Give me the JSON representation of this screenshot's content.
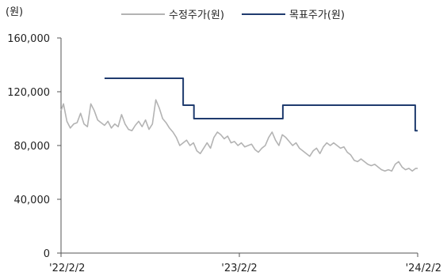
{
  "chart_data": {
    "type": "line",
    "unit_label": "(원)",
    "title": "",
    "xlabel": "",
    "ylabel": "",
    "ylim": [
      0,
      160000
    ],
    "xlim": [
      "2022-02-02",
      "2024-02-02"
    ],
    "y_ticks": [
      {
        "value": 0,
        "label": "0"
      },
      {
        "value": 40000,
        "label": "40,000"
      },
      {
        "value": 80000,
        "label": "80,000"
      },
      {
        "value": 120000,
        "label": "120,000"
      },
      {
        "value": 160000,
        "label": "160,000"
      }
    ],
    "x_ticks": [
      {
        "date": "2022-02-02",
        "label": "'22/2/2"
      },
      {
        "date": "2023-02-02",
        "label": "'23/2/2"
      },
      {
        "date": "2024-02-02",
        "label": "'24/2/2"
      }
    ],
    "grid": false,
    "legend_position": "top",
    "series": [
      {
        "name": "수정주가(원)",
        "color": "#b3b3b3",
        "style": "line",
        "points": [
          [
            "2022-02-02",
            106000
          ],
          [
            "2022-02-07",
            111000
          ],
          [
            "2022-02-14",
            98000
          ],
          [
            "2022-02-21",
            93000
          ],
          [
            "2022-02-28",
            96000
          ],
          [
            "2022-03-07",
            97000
          ],
          [
            "2022-03-14",
            104000
          ],
          [
            "2022-03-21",
            96000
          ],
          [
            "2022-03-28",
            94000
          ],
          [
            "2022-04-04",
            111000
          ],
          [
            "2022-04-11",
            106000
          ],
          [
            "2022-04-18",
            99000
          ],
          [
            "2022-04-25",
            97000
          ],
          [
            "2022-05-02",
            95000
          ],
          [
            "2022-05-09",
            98000
          ],
          [
            "2022-05-16",
            93000
          ],
          [
            "2022-05-23",
            96000
          ],
          [
            "2022-05-30",
            94000
          ],
          [
            "2022-06-06",
            103000
          ],
          [
            "2022-06-13",
            96000
          ],
          [
            "2022-06-20",
            92000
          ],
          [
            "2022-06-27",
            91000
          ],
          [
            "2022-07-04",
            95000
          ],
          [
            "2022-07-11",
            98000
          ],
          [
            "2022-07-18",
            94000
          ],
          [
            "2022-07-25",
            99000
          ],
          [
            "2022-08-01",
            92000
          ],
          [
            "2022-08-08",
            96000
          ],
          [
            "2022-08-15",
            114000
          ],
          [
            "2022-08-22",
            108000
          ],
          [
            "2022-08-29",
            100000
          ],
          [
            "2022-09-05",
            97000
          ],
          [
            "2022-09-12",
            93000
          ],
          [
            "2022-09-19",
            90000
          ],
          [
            "2022-09-26",
            86000
          ],
          [
            "2022-10-03",
            80000
          ],
          [
            "2022-10-10",
            82000
          ],
          [
            "2022-10-17",
            84000
          ],
          [
            "2022-10-24",
            80000
          ],
          [
            "2022-10-31",
            82000
          ],
          [
            "2022-11-07",
            76000
          ],
          [
            "2022-11-14",
            74000
          ],
          [
            "2022-11-21",
            78000
          ],
          [
            "2022-11-28",
            82000
          ],
          [
            "2022-12-05",
            78000
          ],
          [
            "2022-12-12",
            86000
          ],
          [
            "2022-12-19",
            90000
          ],
          [
            "2022-12-26",
            88000
          ],
          [
            "2023-01-02",
            85000
          ],
          [
            "2023-01-09",
            87000
          ],
          [
            "2023-01-16",
            82000
          ],
          [
            "2023-01-23",
            83000
          ],
          [
            "2023-01-30",
            80000
          ],
          [
            "2023-02-06",
            82000
          ],
          [
            "2023-02-13",
            79000
          ],
          [
            "2023-02-20",
            80000
          ],
          [
            "2023-02-27",
            81000
          ],
          [
            "2023-03-06",
            77000
          ],
          [
            "2023-03-13",
            75000
          ],
          [
            "2023-03-20",
            78000
          ],
          [
            "2023-03-27",
            80000
          ],
          [
            "2023-04-03",
            86000
          ],
          [
            "2023-04-10",
            90000
          ],
          [
            "2023-04-17",
            84000
          ],
          [
            "2023-04-24",
            80000
          ],
          [
            "2023-05-01",
            88000
          ],
          [
            "2023-05-08",
            86000
          ],
          [
            "2023-05-15",
            83000
          ],
          [
            "2023-05-22",
            80000
          ],
          [
            "2023-05-29",
            82000
          ],
          [
            "2023-06-05",
            78000
          ],
          [
            "2023-06-12",
            76000
          ],
          [
            "2023-06-19",
            74000
          ],
          [
            "2023-06-26",
            72000
          ],
          [
            "2023-07-03",
            76000
          ],
          [
            "2023-07-10",
            78000
          ],
          [
            "2023-07-17",
            74000
          ],
          [
            "2023-07-24",
            79000
          ],
          [
            "2023-07-31",
            82000
          ],
          [
            "2023-08-07",
            80000
          ],
          [
            "2023-08-14",
            82000
          ],
          [
            "2023-08-21",
            80000
          ],
          [
            "2023-08-28",
            78000
          ],
          [
            "2023-09-04",
            79000
          ],
          [
            "2023-09-11",
            75000
          ],
          [
            "2023-09-18",
            73000
          ],
          [
            "2023-09-25",
            69000
          ],
          [
            "2023-10-02",
            68000
          ],
          [
            "2023-10-09",
            70000
          ],
          [
            "2023-10-16",
            68000
          ],
          [
            "2023-10-23",
            66000
          ],
          [
            "2023-10-30",
            65000
          ],
          [
            "2023-11-06",
            66000
          ],
          [
            "2023-11-13",
            64000
          ],
          [
            "2023-11-20",
            62000
          ],
          [
            "2023-11-27",
            61000
          ],
          [
            "2023-12-04",
            62000
          ],
          [
            "2023-12-11",
            61000
          ],
          [
            "2023-12-18",
            66000
          ],
          [
            "2023-12-25",
            68000
          ],
          [
            "2024-01-01",
            64000
          ],
          [
            "2024-01-08",
            62000
          ],
          [
            "2024-01-15",
            63000
          ],
          [
            "2024-01-22",
            61000
          ],
          [
            "2024-01-29",
            63000
          ],
          [
            "2024-02-02",
            63000
          ]
        ]
      },
      {
        "name": "목표주가(원)",
        "color": "#1f3b6e",
        "style": "step",
        "points": [
          [
            "2022-05-02",
            130000
          ],
          [
            "2022-10-10",
            130000
          ],
          [
            "2022-10-10",
            110000
          ],
          [
            "2022-11-01",
            110000
          ],
          [
            "2022-11-01",
            100000
          ],
          [
            "2023-05-02",
            100000
          ],
          [
            "2023-05-02",
            110000
          ],
          [
            "2024-01-28",
            110000
          ],
          [
            "2024-01-28",
            91000
          ],
          [
            "2024-02-02",
            91000
          ]
        ]
      }
    ]
  }
}
